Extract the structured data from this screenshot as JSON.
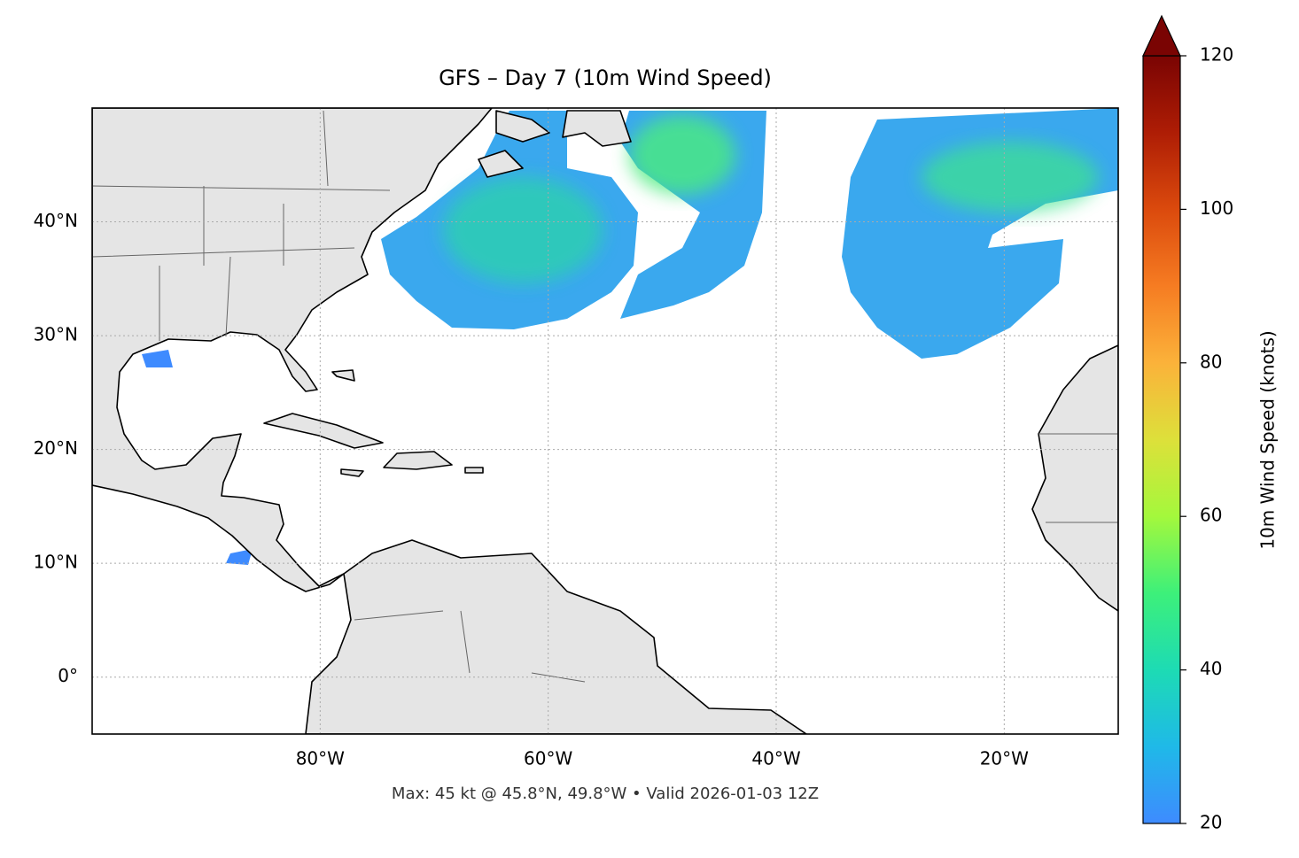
{
  "chart_data": {
    "type": "map",
    "title": "GFS – Day 7 (10m Wind Speed)",
    "subtitle": "Max: 45 kt @ 45.8°N, 49.8°W • Valid 2026-01-03 12Z",
    "xlim": [
      -100,
      -10
    ],
    "ylim": [
      -5,
      50
    ],
    "xticks": [
      {
        "value": -80,
        "label": "80°W"
      },
      {
        "value": -60,
        "label": "60°W"
      },
      {
        "value": -40,
        "label": "40°W"
      },
      {
        "value": -20,
        "label": "20°W"
      }
    ],
    "yticks": [
      {
        "value": 0,
        "label": "0°"
      },
      {
        "value": 10,
        "label": "10°N"
      },
      {
        "value": 20,
        "label": "20°N"
      },
      {
        "value": 30,
        "label": "30°N"
      },
      {
        "value": 40,
        "label": "40°N"
      }
    ],
    "grid": true,
    "colorbar": {
      "label": "10m Wind Speed (knots)",
      "lim": [
        20,
        120
      ],
      "ticks": [
        20,
        40,
        60,
        80,
        100,
        120
      ],
      "extend": "max"
    }
  }
}
